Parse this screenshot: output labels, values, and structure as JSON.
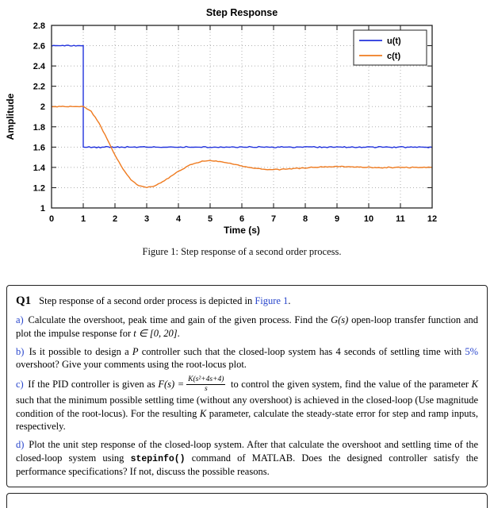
{
  "colors": {
    "series_blue": "#2233dd",
    "series_orange": "#ef7b20",
    "link_blue": "#2946cc",
    "axis": "#111111",
    "grid": "#b0b0b0"
  },
  "figure": {
    "caption": "Figure 1: Step response of a second order process."
  },
  "chart_data": {
    "type": "line",
    "title": "Step Response",
    "xlabel": "Time (s)",
    "ylabel": "Amplitude",
    "xlim": [
      0,
      12
    ],
    "ylim": [
      1,
      2.8
    ],
    "grid": true,
    "legend_position": "top-right",
    "x_ticks": [
      0,
      1,
      2,
      3,
      4,
      5,
      6,
      7,
      8,
      9,
      10,
      11,
      12
    ],
    "x_tick_labels": [
      "0",
      "1",
      "2",
      "3",
      "4",
      "5",
      "6",
      "7",
      "8",
      "9",
      "10",
      "11",
      "12"
    ],
    "y_ticks": [
      1,
      1.2,
      1.4,
      1.6,
      1.8,
      2,
      2.2,
      2.4,
      2.6,
      2.8
    ],
    "y_tick_labels": [
      "1",
      "1.2",
      "1.4",
      "1.6",
      "1.8",
      "2",
      "2.2",
      "2.4",
      "2.6",
      "2.8"
    ],
    "series": [
      {
        "name": "u(t)",
        "color": "#2233dd",
        "noise": 0.007,
        "points": [
          [
            0,
            2.6
          ],
          [
            1,
            2.6
          ],
          [
            1,
            1.6
          ],
          [
            12,
            1.6
          ]
        ]
      },
      {
        "name": "c(t)",
        "color": "#ef7b20",
        "noise": 0.006,
        "points": [
          [
            0,
            2.0
          ],
          [
            1,
            2.0
          ],
          [
            1.25,
            1.953
          ],
          [
            1.5,
            1.835
          ],
          [
            1.75,
            1.68
          ],
          [
            2,
            1.521
          ],
          [
            2.25,
            1.382
          ],
          [
            2.5,
            1.279
          ],
          [
            2.75,
            1.219
          ],
          [
            3,
            1.2
          ],
          [
            3.25,
            1.216
          ],
          [
            3.5,
            1.255
          ],
          [
            3.75,
            1.307
          ],
          [
            4,
            1.36
          ],
          [
            4.25,
            1.406
          ],
          [
            4.5,
            1.44
          ],
          [
            4.75,
            1.46
          ],
          [
            5,
            1.466
          ],
          [
            5.25,
            1.461
          ],
          [
            5.5,
            1.448
          ],
          [
            5.75,
            1.431
          ],
          [
            6,
            1.413
          ],
          [
            6.25,
            1.398
          ],
          [
            6.5,
            1.387
          ],
          [
            6.75,
            1.38
          ],
          [
            7,
            1.378
          ],
          [
            7.25,
            1.38
          ],
          [
            7.5,
            1.384
          ],
          [
            7.75,
            1.39
          ],
          [
            8,
            1.396
          ],
          [
            8.25,
            1.401
          ],
          [
            8.5,
            1.404
          ],
          [
            8.75,
            1.406
          ],
          [
            9,
            1.407
          ],
          [
            9.25,
            1.407
          ],
          [
            9.5,
            1.405
          ],
          [
            9.75,
            1.403
          ],
          [
            10,
            1.401
          ],
          [
            10.25,
            1.4
          ],
          [
            10.5,
            1.399
          ],
          [
            10.75,
            1.399
          ],
          [
            11,
            1.4
          ],
          [
            11.5,
            1.4
          ],
          [
            12,
            1.4
          ]
        ]
      }
    ]
  },
  "questions": {
    "q1": {
      "label": "Q1",
      "t1": "Step response of a second order process is depicted in ",
      "figure_ref": "Figure 1",
      "t2": "."
    },
    "a": {
      "label": "a)",
      "t1": " Calculate the overshoot, peak time and gain of the given process. Find the ",
      "m1": "G(s)",
      "t2": " open-loop transfer function and plot the impulse response for ",
      "m2": "t ∈ [0, 20]",
      "t3": "."
    },
    "b": {
      "label": "b)",
      "t1": " Is it possible to design a ",
      "m1": "P",
      "t2": " controller such that the closed-loop system has 4 seconds of settling time with ",
      "pct": "5%",
      "t3": " overshoot? Give your comments using the root-locus plot."
    },
    "c": {
      "label": "c)",
      "t1": " If the PID controller is given as ",
      "m1": "F(s) =",
      "frac_num": "K(s²+4s+4)",
      "frac_den": "s",
      "t2": " to control the given system, find the value of the parameter ",
      "m2": "K",
      "t3": " such that the minimum possible settling time (without any overshoot) is achieved in the closed-loop (Use magnitude condition of the root-locus). For the resulting ",
      "m3": "K",
      "t4": " parameter, calculate the steady-state error for step and ramp inputs, respectively."
    },
    "d": {
      "label": "d)",
      "t1": " Plot the unit step response of the closed-loop system. After that calculate the overshoot and settling time of the closed-loop system using ",
      "code": "stepinfo()",
      "t2": " command of MATLAB. Does the designed controller satisfy the performance specifications? If not, discuss the possible reasons."
    }
  }
}
